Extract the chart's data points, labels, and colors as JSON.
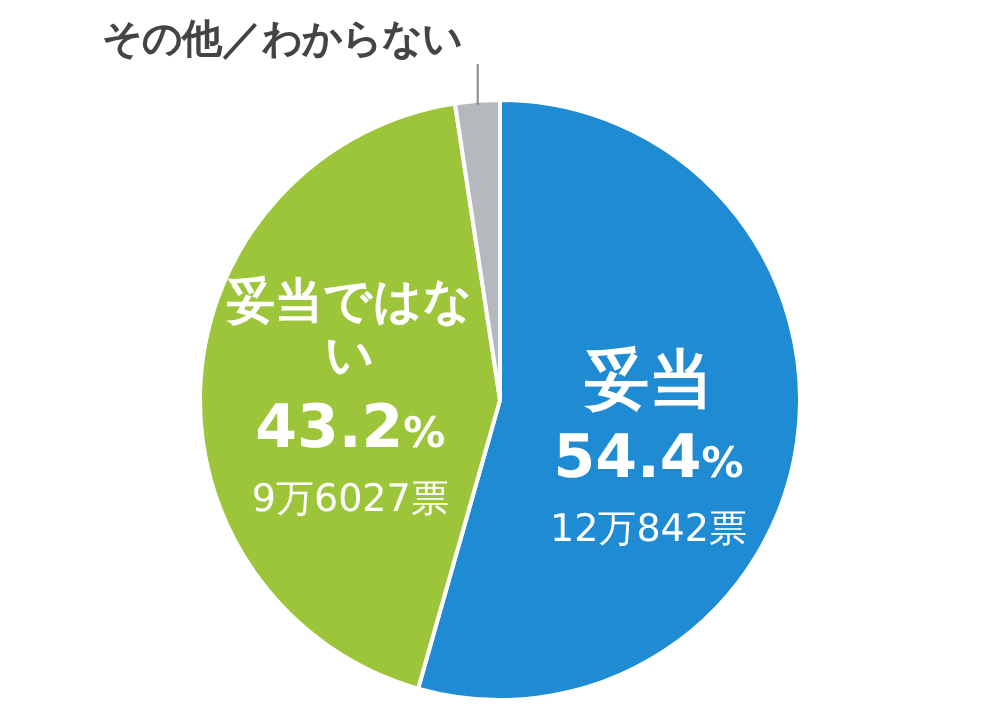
{
  "chart_data": {
    "type": "pie",
    "categories": [
      "妥当",
      "妥当ではない",
      "その他／わからない"
    ],
    "values": [
      54.4,
      43.2,
      2.4
    ],
    "colors": [
      "#1e8bd3",
      "#9cc53a",
      "#b5b9bd"
    ],
    "value_labels": [
      "54.4%",
      "43.2%",
      null
    ],
    "annotations": [
      "12万842票",
      "9万6027票"
    ]
  }
}
